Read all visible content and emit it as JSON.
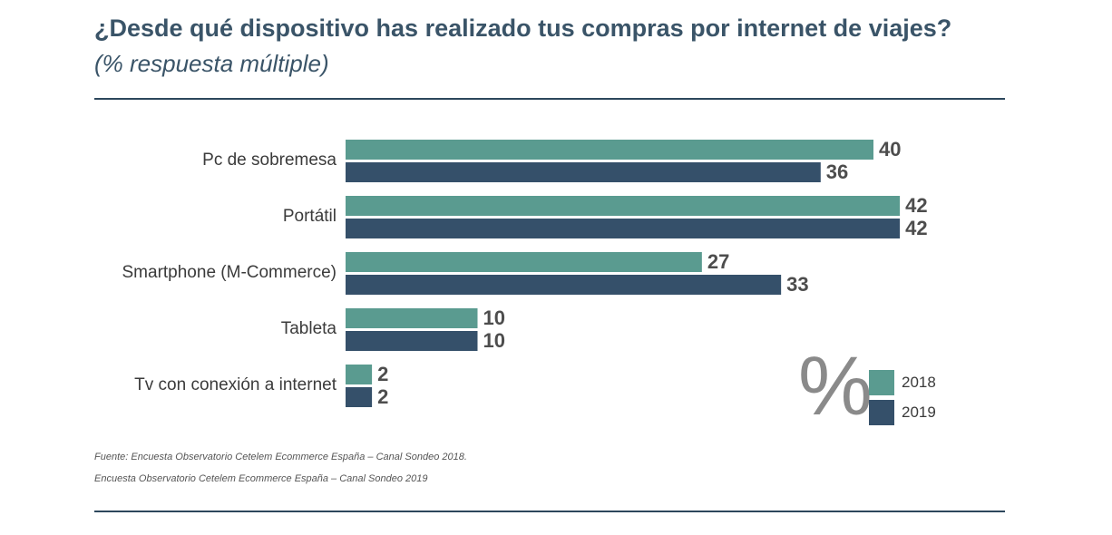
{
  "header": {
    "title": "¿Desde qué dispositivo has realizado tus compras por internet de viajes?",
    "subtitle": "(% respuesta múltiple)"
  },
  "colors": {
    "series_2018": "#5a9b90",
    "series_2019": "#35506a",
    "rule": "#2d475c"
  },
  "legend": {
    "symbol": "%",
    "items": [
      "2018",
      "2019"
    ]
  },
  "chart_data": {
    "type": "bar",
    "orientation": "horizontal",
    "title": "¿Desde qué dispositivo has realizado tus compras por internet de viajes?",
    "subtitle": "(% respuesta múltiple)",
    "categories": [
      "Pc de sobremesa",
      "Portátil",
      "Smartphone (M-Commerce)",
      "Tableta",
      "Tv con conexión a internet"
    ],
    "series": [
      {
        "name": "2018",
        "values": [
          40,
          42,
          27,
          10,
          2
        ]
      },
      {
        "name": "2019",
        "values": [
          36,
          42,
          33,
          10,
          2
        ]
      }
    ],
    "xlim": [
      0,
      42
    ],
    "grid": false,
    "legend_position": "bottom-right"
  },
  "footer": {
    "source_line1": "Fuente: Encuesta Observatorio Cetelem Ecommerce España – Canal Sondeo 2018.",
    "source_line2": "Encuesta Observatorio Cetelem Ecommerce España – Canal Sondeo 2019"
  }
}
